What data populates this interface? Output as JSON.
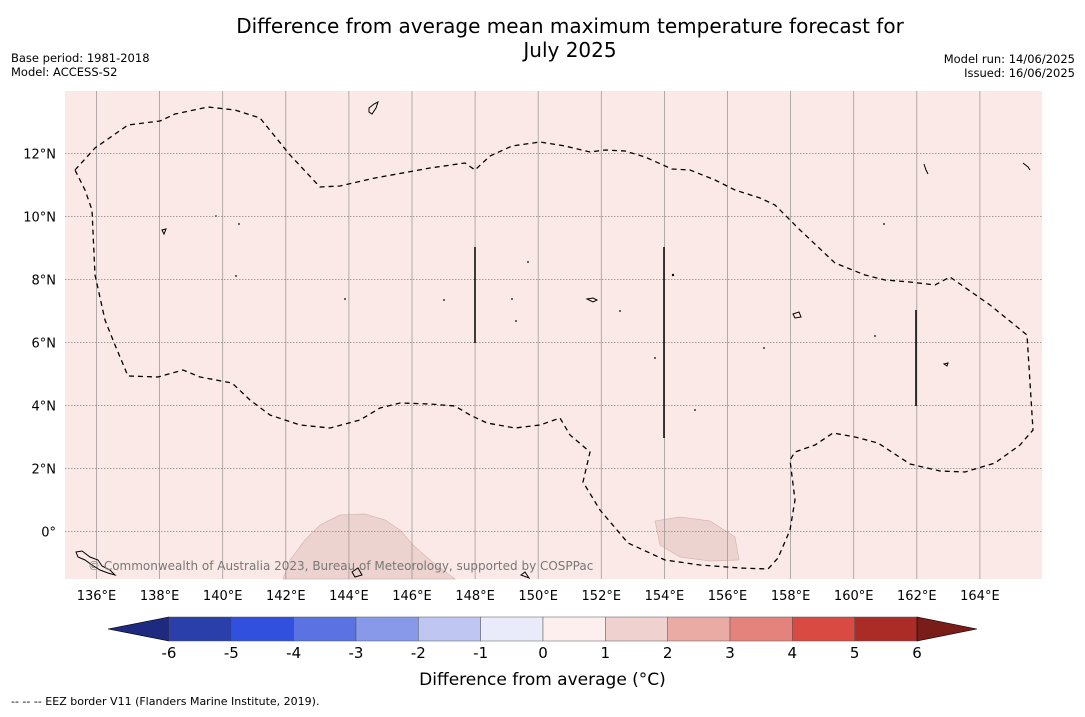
{
  "title_line1": "Difference from average mean maximum temperature forecast for",
  "title_line2": "July 2025",
  "meta_left": [
    "Base period: 1981-2018",
    "Model: ACCESS-S2"
  ],
  "meta_right": [
    "Model run: 14/06/2025",
    "Issued: 16/06/2025"
  ],
  "map": {
    "lon_labels": [
      "136°E",
      "138°E",
      "140°E",
      "142°E",
      "144°E",
      "146°E",
      "148°E",
      "150°E",
      "152°E",
      "154°E",
      "156°E",
      "158°E",
      "160°E",
      "162°E",
      "164°E"
    ],
    "lat_labels": [
      "12°N",
      "10°N",
      "8°N",
      "6°N",
      "4°N",
      "2°N",
      "0°"
    ],
    "background_color": "#fbe9e7",
    "warm_patch_color": "#ecd3cf",
    "copyright": "© Commonwealth of Australia 2023, Bureau of Meteorology, supported by COSPPac"
  },
  "colorbar": {
    "tick_labels": [
      "-6",
      "-5",
      "-4",
      "-3",
      "-2",
      "-1",
      "0",
      "1",
      "2",
      "3",
      "4",
      "5",
      "6"
    ],
    "colors": [
      "#2a3faa",
      "#3050dd",
      "#5a72e2",
      "#8799e8",
      "#bfc6f2",
      "#e9ebfa",
      "#fcefed",
      "#efd2cf",
      "#eaaba5",
      "#e4837b",
      "#d84a42",
      "#ab2c27"
    ],
    "low_extend_color": "#1d2a80",
    "high_extend_color": "#7a1c18",
    "label": "Difference from average (°C)"
  },
  "eez_note": "--  --  -- EEZ border V11 (Flanders Marine Institute, 2019)."
}
